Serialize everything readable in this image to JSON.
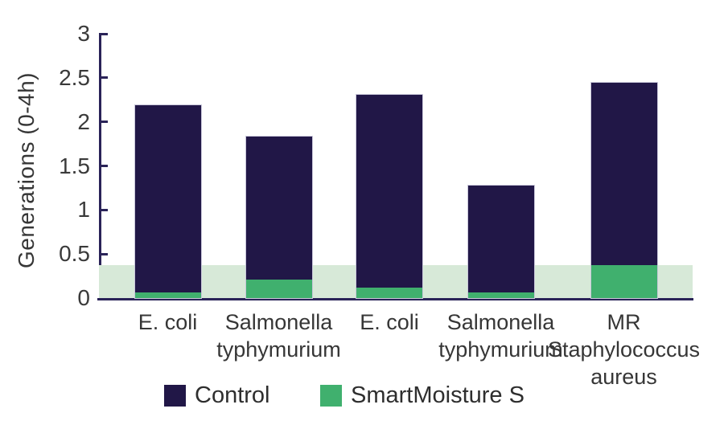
{
  "chart_data": {
    "type": "bar",
    "title": "",
    "ylabel": "Generations (0-4h)",
    "xlabel": "",
    "ylim": [
      0,
      3
    ],
    "yticks": [
      0,
      0.5,
      1,
      1.5,
      2,
      2.5,
      3
    ],
    "ytick_labels": [
      "0",
      "0.5",
      "1",
      "1.5",
      "2",
      "2.5",
      "3"
    ],
    "categories": [
      "E. coli",
      "Salmonella typhymurium",
      "E. coli",
      "Salmonella typhymurium",
      "MR Staphylococcus aureus"
    ],
    "xtick_display": [
      "E. coli",
      "Salmonella\ntyphymurium",
      "E. coli",
      "Salmonella\ntyphymurium",
      "MR\nStaphylococcus\naureus"
    ],
    "series": [
      {
        "name": "Control",
        "color": "#211747",
        "values": [
          2.19,
          1.83,
          2.31,
          1.28,
          2.44
        ]
      },
      {
        "name": "SmartMoisture S",
        "color": "#40b06e",
        "values": [
          0.06,
          0.21,
          0.12,
          0.06,
          0.37
        ]
      }
    ],
    "bar_style": "overlaid",
    "reference_band": {
      "from": 0,
      "to": 0.37,
      "color": "#d7e9d8"
    },
    "legend_position": "bottom",
    "grid": false
  },
  "colors": {
    "bar_control": "#211747",
    "bar_smartmoisture": "#40b06e",
    "reference_band": "#d7e9d8",
    "axis": "#2a2358",
    "text": "#363636"
  }
}
